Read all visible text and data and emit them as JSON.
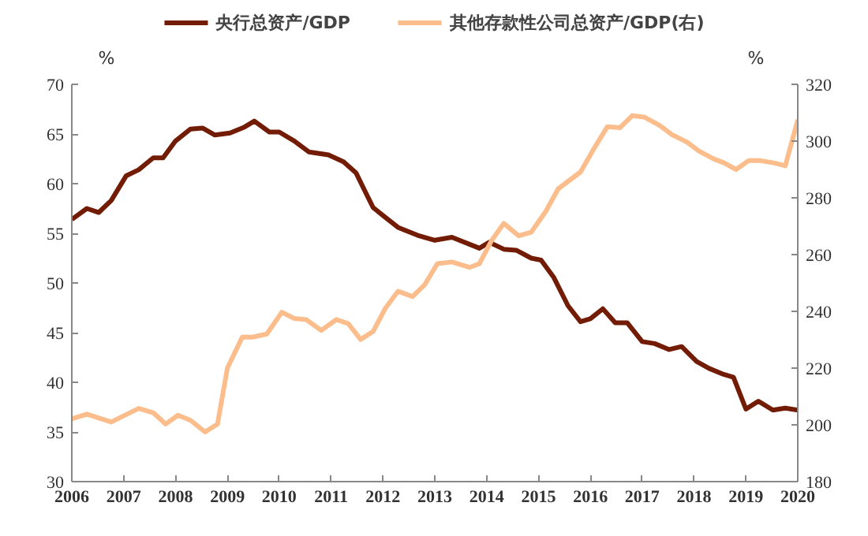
{
  "chart_data": {
    "type": "line",
    "ylabel": "%",
    "y2label": "%",
    "xlim": [
      2006,
      2020
    ],
    "xticks": [
      2006,
      2007,
      2008,
      2009,
      2010,
      2011,
      2012,
      2013,
      2014,
      2015,
      2016,
      2017,
      2018,
      2019,
      2020
    ],
    "ylim": [
      30,
      70
    ],
    "yticks": [
      30,
      35,
      40,
      45,
      50,
      55,
      60,
      65,
      70
    ],
    "y2lim": [
      180,
      320
    ],
    "y2ticks": [
      180,
      200,
      220,
      240,
      260,
      280,
      300,
      320
    ],
    "grid": false,
    "legend": "top",
    "marker": "none",
    "line_style": "solid",
    "series": [
      {
        "name": "央行总资产/GDP",
        "color": "#731c05",
        "x": [
          2006.0,
          2006.29,
          2006.52,
          2006.76,
          2007.05,
          2007.29,
          2007.57,
          2007.76,
          2008.0,
          2008.29,
          2008.52,
          2008.76,
          2009.05,
          2009.33,
          2009.52,
          2009.81,
          2010.0,
          2010.29,
          2010.57,
          2010.95,
          2011.24,
          2011.48,
          2011.62,
          2011.81,
          2012.0,
          2012.29,
          2012.67,
          2013.0,
          2013.33,
          2013.86,
          2014.05,
          2014.33,
          2014.57,
          2014.86,
          2015.05,
          2015.29,
          2015.57,
          2015.81,
          2016.0,
          2016.24,
          2016.48,
          2016.71,
          2017.0,
          2017.24,
          2017.52,
          2017.76,
          2018.05,
          2018.29,
          2018.57,
          2018.76,
          2019.0,
          2019.24,
          2019.52,
          2019.76,
          2020.0
        ],
        "values": [
          56.4,
          57.5,
          57.1,
          58.3,
          60.8,
          61.4,
          62.6,
          62.6,
          64.3,
          65.5,
          65.6,
          64.9,
          65.1,
          65.7,
          66.3,
          65.2,
          65.2,
          64.3,
          63.2,
          62.9,
          62.2,
          61.1,
          59.6,
          57.6,
          56.8,
          55.6,
          54.8,
          54.3,
          54.6,
          53.5,
          54.1,
          53.4,
          53.3,
          52.5,
          52.3,
          50.6,
          47.7,
          46.1,
          46.4,
          47.4,
          46.0,
          46.0,
          44.1,
          43.9,
          43.3,
          43.6,
          42.1,
          41.4,
          40.8,
          40.5,
          37.3,
          38.1,
          37.2,
          37.4,
          37.2
        ]
      },
      {
        "name": "其他存款性公司总资产/GDP(右)",
        "color": "#fbbd8c",
        "axis": "y2",
        "x": [
          2006.0,
          2006.29,
          2006.76,
          2007.29,
          2007.57,
          2007.81,
          2008.05,
          2008.29,
          2008.57,
          2008.81,
          2009.0,
          2009.29,
          2009.48,
          2009.76,
          2010.05,
          2010.29,
          2010.52,
          2010.81,
          2011.1,
          2011.33,
          2011.57,
          2011.81,
          2012.05,
          2012.29,
          2012.57,
          2012.81,
          2013.05,
          2013.33,
          2013.67,
          2013.86,
          2014.1,
          2014.33,
          2014.62,
          2014.86,
          2015.14,
          2015.38,
          2015.81,
          2016.1,
          2016.33,
          2016.57,
          2016.81,
          2017.05,
          2017.33,
          2017.57,
          2017.86,
          2018.1,
          2018.38,
          2018.57,
          2018.81,
          2019.05,
          2019.29,
          2019.57,
          2019.76,
          2020.0
        ],
        "values": [
          202.1,
          203.8,
          201.0,
          205.8,
          204.3,
          200.3,
          203.4,
          201.6,
          197.5,
          200.3,
          220.0,
          231.0,
          230.9,
          232.0,
          239.7,
          237.5,
          237.1,
          233.3,
          237.1,
          235.7,
          230.1,
          232.9,
          241.2,
          247.1,
          245.2,
          249.5,
          256.8,
          257.4,
          255.5,
          256.8,
          265.1,
          271.0,
          266.6,
          267.9,
          275.2,
          283.2,
          289.1,
          298.3,
          305.1,
          304.7,
          309.0,
          308.4,
          305.6,
          302.3,
          299.7,
          296.4,
          293.7,
          292.4,
          290.0,
          293.1,
          293.1,
          292.2,
          291.3,
          307.5
        ]
      }
    ]
  }
}
